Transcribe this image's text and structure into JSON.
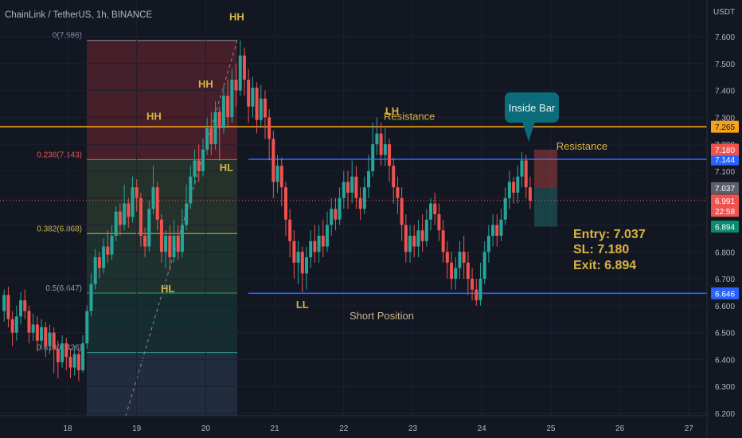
{
  "header": {
    "title": "ChainLink / TetherUS, 1h, BINANCE",
    "currency": "USDT"
  },
  "colors": {
    "bg": "#131722",
    "up": "#26a69a",
    "down": "#ef5350",
    "text": "#b2b5be",
    "annot": "#d9b441",
    "blue": "#2962ff",
    "orange": "#f7a21b",
    "teal": "#0b6b78"
  },
  "chart_data": {
    "type": "candlestick",
    "y_ticks": [
      "7.600",
      "7.500",
      "7.400",
      "7.300",
      "7.200",
      "7.100",
      "7.000",
      "6.900",
      "6.800",
      "6.700",
      "6.600",
      "6.500",
      "6.400",
      "6.300",
      "6.200"
    ],
    "x_ticks": [
      "18",
      "19",
      "20",
      "21",
      "22",
      "23",
      "24",
      "25",
      "26",
      "27"
    ],
    "ylim": [
      6.19,
      7.63
    ],
    "fib_levels": [
      {
        "label": "0(7.586)",
        "price": 7.586
      },
      {
        "label": "0.236(7.143)",
        "price": 7.143
      },
      {
        "label": "0.382(6.868)",
        "price": 6.868
      },
      {
        "label": "0.5(6.647)",
        "price": 6.647
      },
      {
        "label": "0.618(6.426)",
        "price": 6.426
      }
    ],
    "horizontal_lines": [
      {
        "name": "resistance-orange",
        "price": 7.265,
        "tag": "7.265"
      },
      {
        "name": "resistance-blue",
        "price": 7.144,
        "tag": "7.144"
      },
      {
        "name": "support-blue",
        "price": 6.646,
        "tag": "6.646"
      }
    ],
    "price_tags": [
      {
        "value": "7.180",
        "price": 7.18,
        "kind": "down"
      },
      {
        "value": "7.037",
        "price": 7.037,
        "kind": "gray"
      },
      {
        "value": "6.991",
        "price": 6.991,
        "kind": "down",
        "sub": "22:58"
      },
      {
        "value": "6.894",
        "price": 6.894,
        "kind": "up"
      }
    ],
    "position": {
      "entry": 7.037,
      "sl": 7.18,
      "exit": 6.894
    },
    "annotations": [
      {
        "text": "HH",
        "day": 20.45,
        "price": 7.66
      },
      {
        "text": "HH",
        "day": 20.0,
        "price": 7.41
      },
      {
        "text": "HH",
        "day": 19.25,
        "price": 7.29
      },
      {
        "text": "HL",
        "day": 20.3,
        "price": 7.1
      },
      {
        "text": "HL",
        "day": 19.45,
        "price": 6.65
      },
      {
        "text": "LH",
        "day": 22.7,
        "price": 7.31
      },
      {
        "text": "LL",
        "day": 21.4,
        "price": 6.59
      },
      {
        "text": "Resistance",
        "day": 22.95,
        "price": 7.29
      },
      {
        "text": "Resistance",
        "day": 25.45,
        "price": 7.18
      },
      {
        "text": "Short Position",
        "day": 22.55,
        "price": 6.55
      }
    ],
    "callout": "Inside Bar",
    "trade_text": {
      "entry": "Entry: 7.037",
      "sl": "SL: 7.180",
      "exit": "Exit: 6.894"
    },
    "current_price": 6.991,
    "candles": [
      [
        17.08,
        6.58,
        6.64,
        6.54,
        6.66
      ],
      [
        17.14,
        6.64,
        6.55,
        6.52,
        6.67
      ],
      [
        17.2,
        6.55,
        6.5,
        6.45,
        6.58
      ],
      [
        17.26,
        6.5,
        6.56,
        6.47,
        6.6
      ],
      [
        17.32,
        6.56,
        6.62,
        6.53,
        6.65
      ],
      [
        17.38,
        6.62,
        6.58,
        6.55,
        6.66
      ],
      [
        17.44,
        6.58,
        6.5,
        6.46,
        6.6
      ],
      [
        17.5,
        6.5,
        6.53,
        6.47,
        6.57
      ],
      [
        17.56,
        6.53,
        6.47,
        6.43,
        6.56
      ],
      [
        17.62,
        6.47,
        6.52,
        6.44,
        6.55
      ],
      [
        17.68,
        6.52,
        6.45,
        6.41,
        6.54
      ],
      [
        17.74,
        6.45,
        6.5,
        6.42,
        6.53
      ],
      [
        17.8,
        6.5,
        6.44,
        6.35,
        6.52
      ],
      [
        17.86,
        6.44,
        6.39,
        6.33,
        6.47
      ],
      [
        17.92,
        6.39,
        6.46,
        6.37,
        6.49
      ],
      [
        17.98,
        6.46,
        6.41,
        6.36,
        6.48
      ],
      [
        18.04,
        6.41,
        6.37,
        6.33,
        6.44
      ],
      [
        18.1,
        6.37,
        6.42,
        6.34,
        6.45
      ],
      [
        18.16,
        6.42,
        6.36,
        6.32,
        6.44
      ],
      [
        18.22,
        6.36,
        6.46,
        6.35,
        6.49
      ],
      [
        18.28,
        6.46,
        6.58,
        6.44,
        6.6
      ],
      [
        18.34,
        6.58,
        6.68,
        6.56,
        6.72
      ],
      [
        18.4,
        6.68,
        6.78,
        6.66,
        6.81
      ],
      [
        18.46,
        6.78,
        6.74,
        6.7,
        6.8
      ],
      [
        18.52,
        6.74,
        6.82,
        6.72,
        6.85
      ],
      [
        18.58,
        6.82,
        6.79,
        6.76,
        6.88
      ],
      [
        18.64,
        6.79,
        6.86,
        6.77,
        6.9
      ],
      [
        18.7,
        6.86,
        6.95,
        6.84,
        6.97
      ],
      [
        18.76,
        6.95,
        6.9,
        6.86,
        6.98
      ],
      [
        18.82,
        6.9,
        6.98,
        6.88,
        7.05
      ],
      [
        18.88,
        6.98,
        6.93,
        6.89,
        7.0
      ],
      [
        18.94,
        6.93,
        7.04,
        6.91,
        7.08
      ],
      [
        19.0,
        7.04,
        7.0,
        6.95,
        7.07
      ],
      [
        19.06,
        7.0,
        6.86,
        6.82,
        7.02
      ],
      [
        19.12,
        6.86,
        6.82,
        6.78,
        6.89
      ],
      [
        19.18,
        6.82,
        6.96,
        6.8,
        6.99
      ],
      [
        19.24,
        6.96,
        7.04,
        6.94,
        7.12
      ],
      [
        19.3,
        7.04,
        6.92,
        6.88,
        7.06
      ],
      [
        19.36,
        6.92,
        6.8,
        6.76,
        6.94
      ],
      [
        19.42,
        6.8,
        6.86,
        6.74,
        6.88
      ],
      [
        19.48,
        6.86,
        6.78,
        6.73,
        6.9
      ],
      [
        19.54,
        6.78,
        6.86,
        6.76,
        6.92
      ],
      [
        19.6,
        6.86,
        6.8,
        6.77,
        6.9
      ],
      [
        19.66,
        6.8,
        6.9,
        6.78,
        6.96
      ],
      [
        19.72,
        6.9,
        6.98,
        6.88,
        7.05
      ],
      [
        19.78,
        6.98,
        7.08,
        6.96,
        7.12
      ],
      [
        19.84,
        7.08,
        7.14,
        7.05,
        7.18
      ],
      [
        19.9,
        7.14,
        7.1,
        7.06,
        7.2
      ],
      [
        19.96,
        7.1,
        7.18,
        7.08,
        7.22
      ],
      [
        20.02,
        7.18,
        7.26,
        7.16,
        7.3
      ],
      [
        20.08,
        7.26,
        7.2,
        7.16,
        7.32
      ],
      [
        20.14,
        7.2,
        7.32,
        7.18,
        7.36
      ],
      [
        20.2,
        7.32,
        7.26,
        7.14,
        7.34
      ],
      [
        20.26,
        7.26,
        7.38,
        7.24,
        7.42
      ],
      [
        20.32,
        7.38,
        7.3,
        7.26,
        7.44
      ],
      [
        20.38,
        7.3,
        7.44,
        7.28,
        7.48
      ],
      [
        20.44,
        7.44,
        7.4,
        7.34,
        7.5
      ],
      [
        20.5,
        7.4,
        7.53,
        7.38,
        7.586
      ],
      [
        20.56,
        7.53,
        7.44,
        7.38,
        7.56
      ],
      [
        20.62,
        7.44,
        7.34,
        7.28,
        7.48
      ],
      [
        20.68,
        7.34,
        7.41,
        7.3,
        7.45
      ],
      [
        20.74,
        7.41,
        7.29,
        7.24,
        7.43
      ],
      [
        20.8,
        7.29,
        7.37,
        7.26,
        7.42
      ],
      [
        20.86,
        7.37,
        7.3,
        7.22,
        7.4
      ],
      [
        20.92,
        7.3,
        7.22,
        7.14,
        7.33
      ],
      [
        20.98,
        7.22,
        7.06,
        7.0,
        7.25
      ],
      [
        21.04,
        7.06,
        7.12,
        7.02,
        7.16
      ],
      [
        21.1,
        7.12,
        7.04,
        6.97,
        7.15
      ],
      [
        21.16,
        7.04,
        6.92,
        6.86,
        7.06
      ],
      [
        21.22,
        6.92,
        6.84,
        6.78,
        6.96
      ],
      [
        21.28,
        6.84,
        6.76,
        6.7,
        6.88
      ],
      [
        21.34,
        6.76,
        6.8,
        6.68,
        6.84
      ],
      [
        21.4,
        6.8,
        6.72,
        6.65,
        6.82
      ],
      [
        21.46,
        6.72,
        6.78,
        6.66,
        6.82
      ],
      [
        21.52,
        6.78,
        6.84,
        6.74,
        6.88
      ],
      [
        21.58,
        6.84,
        6.8,
        6.76,
        6.9
      ],
      [
        21.64,
        6.8,
        6.86,
        6.76,
        6.9
      ],
      [
        21.7,
        6.86,
        6.82,
        6.78,
        6.92
      ],
      [
        21.76,
        6.82,
        6.9,
        6.8,
        6.95
      ],
      [
        21.82,
        6.9,
        6.96,
        6.86,
        7.0
      ],
      [
        21.88,
        6.96,
        6.92,
        6.88,
        7.0
      ],
      [
        21.94,
        6.92,
        7.0,
        6.9,
        7.04
      ],
      [
        22.0,
        7.0,
        7.06,
        6.96,
        7.1
      ],
      [
        22.06,
        7.06,
        7.02,
        6.96,
        7.1
      ],
      [
        22.12,
        7.02,
        7.08,
        6.98,
        7.14
      ],
      [
        22.18,
        7.08,
        7.0,
        6.96,
        7.12
      ],
      [
        22.24,
        7.0,
        6.96,
        6.92,
        7.04
      ],
      [
        22.3,
        6.96,
        7.04,
        6.94,
        7.08
      ],
      [
        22.36,
        7.04,
        7.1,
        7.0,
        7.16
      ],
      [
        22.42,
        7.1,
        7.2,
        7.08,
        7.28
      ],
      [
        22.48,
        7.2,
        7.24,
        7.16,
        7.3
      ],
      [
        22.54,
        7.24,
        7.16,
        7.12,
        7.28
      ],
      [
        22.6,
        7.16,
        7.2,
        7.12,
        7.26
      ],
      [
        22.66,
        7.2,
        7.12,
        7.06,
        7.22
      ],
      [
        22.72,
        7.12,
        7.04,
        6.98,
        7.15
      ],
      [
        22.78,
        7.04,
        7.0,
        6.94,
        7.08
      ],
      [
        22.84,
        7.0,
        6.9,
        6.84,
        7.04
      ],
      [
        22.9,
        6.9,
        6.8,
        6.76,
        6.94
      ],
      [
        22.96,
        6.8,
        6.86,
        6.76,
        6.9
      ],
      [
        23.02,
        6.86,
        6.82,
        6.78,
        6.9
      ],
      [
        23.08,
        6.82,
        6.88,
        6.78,
        6.92
      ],
      [
        23.14,
        6.88,
        6.84,
        6.8,
        6.94
      ],
      [
        23.2,
        6.84,
        6.92,
        6.82,
        6.96
      ],
      [
        23.26,
        6.92,
        6.98,
        6.88,
        7.0
      ],
      [
        23.32,
        6.98,
        6.94,
        6.9,
        7.02
      ],
      [
        23.38,
        6.94,
        6.88,
        6.84,
        6.98
      ],
      [
        23.44,
        6.88,
        6.8,
        6.76,
        6.92
      ],
      [
        23.5,
        6.8,
        6.76,
        6.7,
        6.84
      ],
      [
        23.56,
        6.76,
        6.7,
        6.66,
        6.8
      ],
      [
        23.62,
        6.7,
        6.74,
        6.66,
        6.78
      ],
      [
        23.68,
        6.74,
        6.8,
        6.7,
        6.84
      ],
      [
        23.74,
        6.8,
        6.76,
        6.7,
        6.86
      ],
      [
        23.8,
        6.76,
        6.7,
        6.64,
        6.8
      ],
      [
        23.86,
        6.7,
        6.66,
        6.62,
        6.74
      ],
      [
        23.92,
        6.66,
        6.62,
        6.6,
        6.7
      ],
      [
        23.98,
        6.62,
        6.7,
        6.6,
        6.76
      ],
      [
        24.04,
        6.7,
        6.8,
        6.68,
        6.84
      ],
      [
        24.1,
        6.8,
        6.86,
        6.76,
        6.9
      ],
      [
        24.16,
        6.86,
        6.9,
        6.82,
        6.94
      ],
      [
        24.22,
        6.9,
        6.86,
        6.82,
        6.94
      ],
      [
        24.28,
        6.86,
        6.92,
        6.84,
        6.96
      ],
      [
        24.34,
        6.92,
        7.0,
        6.9,
        7.04
      ],
      [
        24.4,
        7.0,
        7.06,
        6.96,
        7.1
      ],
      [
        24.46,
        7.06,
        7.02,
        6.98,
        7.08
      ],
      [
        24.52,
        7.02,
        7.08,
        6.98,
        7.12
      ],
      [
        24.58,
        7.08,
        7.14,
        7.04,
        7.17
      ],
      [
        24.64,
        7.14,
        7.04,
        7.0,
        7.16
      ],
      [
        24.7,
        7.04,
        6.99,
        6.96,
        7.08
      ]
    ]
  }
}
